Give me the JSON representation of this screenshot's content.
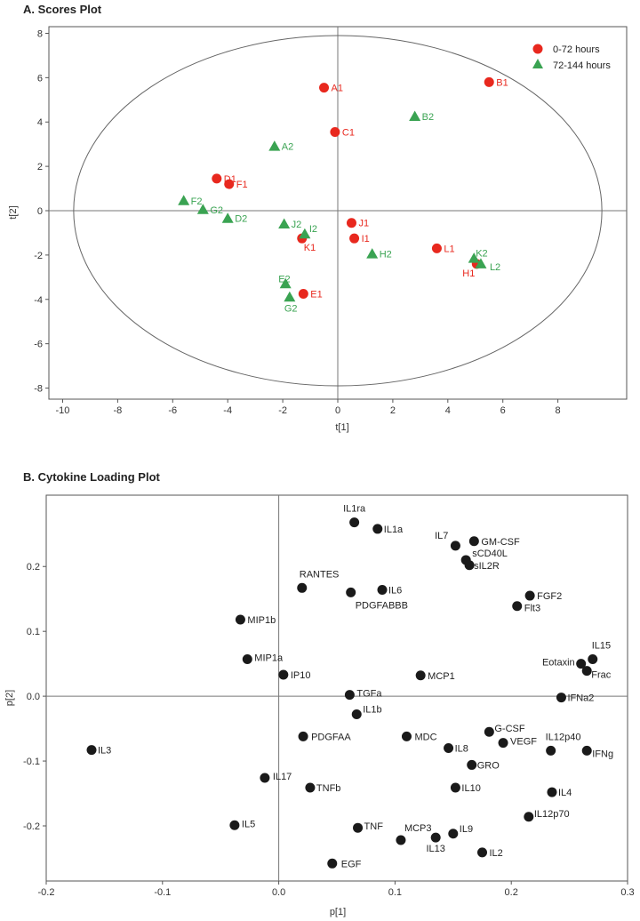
{
  "chart_data": [
    {
      "type": "scatter",
      "title": "A. Scores Plot",
      "xlabel": "t[1]",
      "ylabel": "t[2]",
      "xlim": [
        -10.5,
        10.5
      ],
      "ylim": [
        -8.5,
        8.3
      ],
      "xticks": [
        -10,
        -8,
        -6,
        -4,
        -2,
        0,
        2,
        4,
        6,
        8
      ],
      "yticks": [
        -8,
        -6,
        -4,
        -2,
        0,
        2,
        4,
        6,
        8
      ],
      "ellipse": {
        "cx": 0,
        "cy": 0,
        "rx": 9.6,
        "ry": 7.9
      },
      "legend": {
        "position": "top-right"
      },
      "colors": {
        "s1": "#e8281e",
        "s2": "#3aa352"
      },
      "series": [
        {
          "name": "0-72 hours",
          "marker": "circle",
          "points": [
            {
              "label": "A1",
              "x": -0.5,
              "y": 5.55
            },
            {
              "label": "B1",
              "x": 5.5,
              "y": 5.8
            },
            {
              "label": "C1",
              "x": -0.1,
              "y": 3.55
            },
            {
              "label": "D1",
              "x": -4.4,
              "y": 1.45
            },
            {
              "label": "F1",
              "x": -3.95,
              "y": 1.2
            },
            {
              "label": "J1",
              "x": 0.5,
              "y": -0.55
            },
            {
              "label": "I1",
              "x": 0.6,
              "y": -1.25
            },
            {
              "label": "K1",
              "x": -1.3,
              "y": -1.25
            },
            {
              "label": "L1",
              "x": 3.6,
              "y": -1.7
            },
            {
              "label": "H1",
              "x": 5.05,
              "y": -2.4
            },
            {
              "label": "E1",
              "x": -1.25,
              "y": -3.75
            }
          ]
        },
        {
          "name": "72-144 hours",
          "marker": "triangle",
          "points": [
            {
              "label": "B2",
              "x": 2.8,
              "y": 4.25
            },
            {
              "label": "A2",
              "x": -2.3,
              "y": 2.9
            },
            {
              "label": "F2",
              "x": -5.6,
              "y": 0.45
            },
            {
              "label": "G2",
              "x": -4.9,
              "y": 0.05
            },
            {
              "label": "D2",
              "x": -4.0,
              "y": -0.35
            },
            {
              "label": "J2",
              "x": -1.95,
              "y": -0.6
            },
            {
              "label": "I2",
              "x": -1.2,
              "y": -1.05
            },
            {
              "label": "H2",
              "x": 1.25,
              "y": -1.95
            },
            {
              "label": "K2",
              "x": 4.95,
              "y": -2.15
            },
            {
              "label": "L2",
              "x": 5.2,
              "y": -2.4
            },
            {
              "label": "E2",
              "x": -1.9,
              "y": -3.3
            },
            {
              "label": "G2",
              "x": -1.75,
              "y": -3.9
            }
          ]
        }
      ]
    },
    {
      "type": "scatter",
      "title": "B. Cytokine Loading Plot",
      "xlabel": "p[1]",
      "ylabel": "p[2]",
      "xlim": [
        -0.2,
        0.3
      ],
      "ylim": [
        -0.285,
        0.31
      ],
      "xticks": [
        -0.2,
        -0.1,
        0,
        0.1,
        0.2,
        0.3
      ],
      "xtick_labels": [
        "-0.2",
        "-0.1",
        "0.0",
        "0.1",
        "0.2",
        "0.3"
      ],
      "yticks": [
        -0.2,
        -0.1,
        0,
        0.1,
        0.2
      ],
      "ytick_labels": [
        "-0.2",
        "-0.1",
        "0.0",
        "0.1",
        "0.2"
      ],
      "colors": {
        "point": "#1a1a1a"
      },
      "points": [
        {
          "label": "IL1ra",
          "x": 0.065,
          "y": 0.268
        },
        {
          "label": "IL1a",
          "x": 0.085,
          "y": 0.258
        },
        {
          "label": "IL7",
          "x": 0.152,
          "y": 0.232
        },
        {
          "label": "GM-CSF",
          "x": 0.168,
          "y": 0.239
        },
        {
          "label": "sCD40L",
          "x": 0.161,
          "y": 0.21
        },
        {
          "label": "sIL2R",
          "x": 0.164,
          "y": 0.202
        },
        {
          "label": "RANTES",
          "x": 0.02,
          "y": 0.167
        },
        {
          "label": "PDGFABBB",
          "x": 0.062,
          "y": 0.16
        },
        {
          "label": "IL6",
          "x": 0.089,
          "y": 0.164
        },
        {
          "label": "FGF2",
          "x": 0.216,
          "y": 0.155
        },
        {
          "label": "Flt3",
          "x": 0.205,
          "y": 0.139
        },
        {
          "label": "MIP1b",
          "x": -0.033,
          "y": 0.118
        },
        {
          "label": "IL15",
          "x": 0.27,
          "y": 0.057
        },
        {
          "label": "Eotaxin",
          "x": 0.26,
          "y": 0.05
        },
        {
          "label": "Frac",
          "x": 0.265,
          "y": 0.039
        },
        {
          "label": "MIP1a",
          "x": -0.027,
          "y": 0.057
        },
        {
          "label": "IP10",
          "x": 0.004,
          "y": 0.033
        },
        {
          "label": "MCP1",
          "x": 0.122,
          "y": 0.032
        },
        {
          "label": "TGFa",
          "x": 0.061,
          "y": 0.002
        },
        {
          "label": "IFNa2",
          "x": 0.243,
          "y": -0.002
        },
        {
          "label": "IL1b",
          "x": 0.067,
          "y": -0.028
        },
        {
          "label": "G-CSF",
          "x": 0.181,
          "y": -0.055
        },
        {
          "label": "PDGFAA",
          "x": 0.021,
          "y": -0.062
        },
        {
          "label": "MDC",
          "x": 0.11,
          "y": -0.062
        },
        {
          "label": "VEGF",
          "x": 0.193,
          "y": -0.072
        },
        {
          "label": "IL8",
          "x": 0.146,
          "y": -0.08
        },
        {
          "label": "IL3",
          "x": -0.161,
          "y": -0.083
        },
        {
          "label": "IL12p40",
          "x": 0.234,
          "y": -0.084
        },
        {
          "label": "IFNg",
          "x": 0.265,
          "y": -0.084
        },
        {
          "label": "GRO",
          "x": 0.166,
          "y": -0.106
        },
        {
          "label": "IL17",
          "x": -0.012,
          "y": -0.126
        },
        {
          "label": "TNFb",
          "x": 0.027,
          "y": -0.141
        },
        {
          "label": "IL10",
          "x": 0.152,
          "y": -0.141
        },
        {
          "label": "IL4",
          "x": 0.235,
          "y": -0.148
        },
        {
          "label": "IL12p70",
          "x": 0.215,
          "y": -0.186
        },
        {
          "label": "IL5",
          "x": -0.038,
          "y": -0.199
        },
        {
          "label": "TNF",
          "x": 0.068,
          "y": -0.203
        },
        {
          "label": "IL9",
          "x": 0.15,
          "y": -0.212
        },
        {
          "label": "IL13",
          "x": 0.135,
          "y": -0.218
        },
        {
          "label": "MCP3",
          "x": 0.105,
          "y": -0.222
        },
        {
          "label": "IL2",
          "x": 0.175,
          "y": -0.241
        },
        {
          "label": "EGF",
          "x": 0.046,
          "y": -0.258
        }
      ]
    }
  ]
}
